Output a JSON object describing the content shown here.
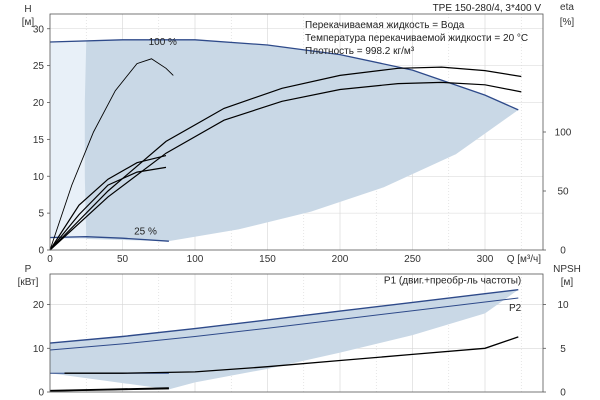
{
  "chart_data": {
    "title": "TPE 150-280/4, 3*400 V",
    "info": [
      "Перекачиваемая жидкость = Вода",
      "Температура перекачиваемой жидкости = 20 °C",
      "Плотность = 998.2 кг/м³"
    ],
    "x_axis": {
      "label": "Q [м³/ч]",
      "range": [
        0,
        340
      ],
      "ticks": [
        0,
        50,
        100,
        150,
        200,
        250,
        300
      ]
    },
    "colors": {
      "area": "#c9d8e6",
      "area_light": "#e8f0f8",
      "curve": "#000000",
      "p1_line": "#2e4a8a",
      "grid": "#d6d6d6"
    },
    "panels": [
      {
        "id": "top",
        "type": "line",
        "y_left": {
          "label": [
            "H",
            "[м]"
          ],
          "range": [
            0,
            32
          ],
          "ticks": [
            0,
            5,
            10,
            15,
            20,
            25,
            30
          ]
        },
        "y_right": {
          "label": [
            "eta",
            "[%]"
          ],
          "range": [
            0,
            200
          ],
          "ticks": [
            0,
            50,
            100
          ]
        },
        "speed_labels": [
          {
            "text": "100 %",
            "x": 68,
            "y": 27.8
          },
          {
            "text": "25 %",
            "x": 58,
            "y": 2.1
          }
        ],
        "area": {
          "upper": [
            [
              0,
              28.2
            ],
            [
              50,
              28.5
            ],
            [
              100,
              28.5
            ],
            [
              150,
              27.8
            ],
            [
              200,
              26.5
            ],
            [
              250,
              24.4
            ],
            [
              300,
              21.0
            ],
            [
              323,
              19.0
            ]
          ],
          "lower": [
            [
              25,
              1.5
            ],
            [
              60,
              1.3
            ],
            [
              82,
              1.2
            ]
          ],
          "boundary": [
            [
              323,
              19.0
            ],
            [
              280,
              13.0
            ],
            [
              230,
              8.5
            ],
            [
              180,
              5.2
            ],
            [
              130,
              2.8
            ],
            [
              82,
              1.2
            ]
          ],
          "left_edge": [
            [
              25,
              1.5
            ],
            [
              24,
              10
            ],
            [
              24,
              20
            ],
            [
              25,
              28.3
            ]
          ]
        },
        "series": [
          {
            "points": [
              [
                0,
                28.2
              ],
              [
                50,
                28.5
              ],
              [
                100,
                28.5
              ],
              [
                150,
                27.8
              ],
              [
                200,
                26.5
              ],
              [
                250,
                24.4
              ],
              [
                300,
                21.0
              ],
              [
                323,
                19.0
              ]
            ],
            "axis": "left",
            "color": "#2e4a8a",
            "width": 1.3
          },
          {
            "points": [
              [
                0,
                1.7
              ],
              [
                25,
                1.8
              ],
              [
                50,
                1.6
              ],
              [
                82,
                1.2
              ]
            ],
            "axis": "left",
            "color": "#2e4a8a",
            "width": 1.3
          },
          {
            "points": [
              [
                0,
                0
              ],
              [
                15,
                55
              ],
              [
                30,
                100
              ],
              [
                45,
                135
              ],
              [
                60,
                158
              ],
              [
                70,
                162
              ],
              [
                80,
                154
              ],
              [
                85,
                148
              ]
            ],
            "axis": "right",
            "color": "#000000",
            "width": 0.9
          },
          {
            "points": [
              [
                0,
                0
              ],
              [
                20,
                38
              ],
              [
                40,
                60
              ],
              [
                60,
                74
              ],
              [
                80,
                80
              ]
            ],
            "axis": "right",
            "color": "#000000",
            "width": 1.2
          },
          {
            "points": [
              [
                0,
                0
              ],
              [
                20,
                30
              ],
              [
                40,
                55
              ],
              [
                60,
                66
              ],
              [
                80,
                70
              ]
            ],
            "axis": "right",
            "color": "#000000",
            "width": 1.2
          },
          {
            "points": [
              [
                0,
                0
              ],
              [
                40,
                50
              ],
              [
                80,
                92
              ],
              [
                120,
                120
              ],
              [
                160,
                137
              ],
              [
                200,
                148
              ],
              [
                240,
                154
              ],
              [
                270,
                155
              ],
              [
                300,
                152
              ],
              [
                325,
                147
              ]
            ],
            "axis": "right",
            "color": "#000000",
            "width": 1.2
          },
          {
            "points": [
              [
                0,
                0
              ],
              [
                40,
                45
              ],
              [
                80,
                82
              ],
              [
                120,
                110
              ],
              [
                160,
                126
              ],
              [
                200,
                136
              ],
              [
                240,
                141
              ],
              [
                270,
                142
              ],
              [
                300,
                140
              ],
              [
                325,
                134
              ]
            ],
            "axis": "right",
            "color": "#000000",
            "width": 1.2
          }
        ]
      },
      {
        "id": "bottom",
        "type": "line",
        "y_left": {
          "label": [
            "P",
            "[кВт]"
          ],
          "range": [
            0,
            27
          ],
          "ticks": [
            0,
            10,
            20
          ]
        },
        "y_right": {
          "label": [
            "NPSH",
            "[м]"
          ],
          "range": [
            0,
            13.5
          ],
          "ticks": [
            0,
            5,
            10
          ]
        },
        "legend_labels": [
          {
            "text": "P1 (двиг.+преобр-ль частоты)",
            "x": 325,
            "y": 24.8,
            "anchor": "end"
          },
          {
            "text": "P2",
            "x": 325,
            "y": 18.5,
            "anchor": "end"
          }
        ],
        "area": {
          "upper": [
            [
              0,
              11.2
            ],
            [
              50,
              12.7
            ],
            [
              100,
              14.5
            ],
            [
              150,
              16.5
            ],
            [
              200,
              18.5
            ],
            [
              250,
              20.5
            ],
            [
              300,
              22.5
            ],
            [
              323,
              23.4
            ]
          ],
          "lower": [
            [
              0,
              4.3
            ],
            [
              82,
              0.6
            ]
          ],
          "boundary": [
            [
              323,
              23.4
            ],
            [
              300,
              18.0
            ],
            [
              250,
              13.0
            ],
            [
              200,
              9.0
            ],
            [
              150,
              5.3
            ],
            [
              100,
              2.2
            ],
            [
              82,
              0.6
            ]
          ]
        },
        "series": [
          {
            "points": [
              [
                0,
                11.2
              ],
              [
                50,
                12.7
              ],
              [
                100,
                14.5
              ],
              [
                150,
                16.5
              ],
              [
                200,
                18.5
              ],
              [
                250,
                20.5
              ],
              [
                300,
                22.5
              ],
              [
                323,
                23.4
              ]
            ],
            "axis": "left",
            "color": "#2e4a8a",
            "width": 1.4
          },
          {
            "points": [
              [
                0,
                9.6
              ],
              [
                50,
                11.0
              ],
              [
                100,
                12.7
              ],
              [
                150,
                14.6
              ],
              [
                200,
                16.6
              ],
              [
                250,
                18.6
              ],
              [
                300,
                20.6
              ],
              [
                323,
                21.5
              ]
            ],
            "axis": "left",
            "color": "#2e4a8a",
            "width": 1.0
          },
          {
            "points": [
              [
                0,
                4.3
              ],
              [
                25,
                4.3
              ],
              [
                82,
                4.3
              ]
            ],
            "axis": "left",
            "color": "#2e4a8a",
            "width": 1.0
          },
          {
            "points": [
              [
                0,
                0.3
              ],
              [
                40,
                0.6
              ],
              [
                82,
                0.9
              ]
            ],
            "axis": "left",
            "color": "#000000",
            "width": 1.6
          },
          {
            "points": [
              [
                0,
                0.2
              ],
              [
                40,
                0.45
              ],
              [
                82,
                0.7
              ]
            ],
            "axis": "left",
            "color": "#000000",
            "width": 1.0
          },
          {
            "points": [
              [
                10,
                2.15
              ],
              [
                50,
                2.15
              ],
              [
                100,
                2.3
              ],
              [
                150,
                2.9
              ],
              [
                200,
                3.6
              ],
              [
                250,
                4.3
              ],
              [
                300,
                5.0
              ],
              [
                323,
                6.3
              ]
            ],
            "axis": "right",
            "color": "#000000",
            "width": 1.3
          }
        ]
      }
    ]
  }
}
